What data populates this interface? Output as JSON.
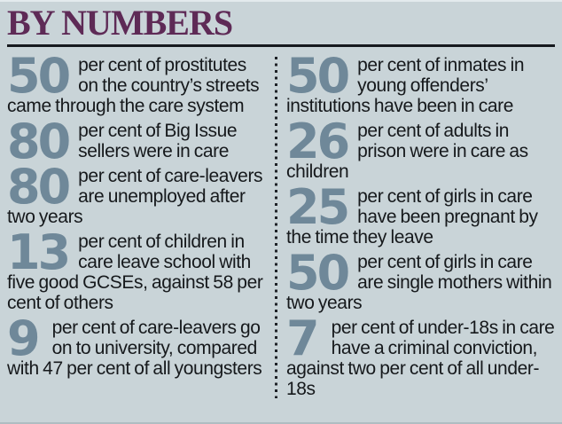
{
  "panel": {
    "title": "BY NUMBERS",
    "colors": {
      "background": "#c9d4d8",
      "title": "#5e2a56",
      "rule": "#16191e",
      "number": "#6f8899",
      "text": "#16191c",
      "divider_dots": "#1d2126"
    },
    "columns": {
      "left": [
        {
          "number": "50",
          "text": "per cent of prostitutes on the country’s streets came through the care system"
        },
        {
          "number": "80",
          "text": "per cent of Big Issue sellers were in care"
        },
        {
          "number": "80",
          "text": "per cent of care-leavers are unemployed after two years"
        },
        {
          "number": "13",
          "text": "per cent of children in care leave school with five good GCSEs, against 58 per cent of others"
        },
        {
          "number": "9",
          "text": "per cent of care-leavers go on to university, compared with 47 per cent of all youngsters"
        }
      ],
      "right": [
        {
          "number": "50",
          "text": "per cent of inmates in young offenders’ institutions have been in care"
        },
        {
          "number": "26",
          "text": "per cent of adults in prison were in care as children"
        },
        {
          "number": "25",
          "text": "per cent of girls in care have been pregnant by the time they leave"
        },
        {
          "number": "50",
          "text": "per cent of girls in care are single mothers within two years"
        },
        {
          "number": "7",
          "text": "per cent of under-18s in care have a criminal conviction, against two per cent of all under-18s"
        }
      ]
    }
  }
}
